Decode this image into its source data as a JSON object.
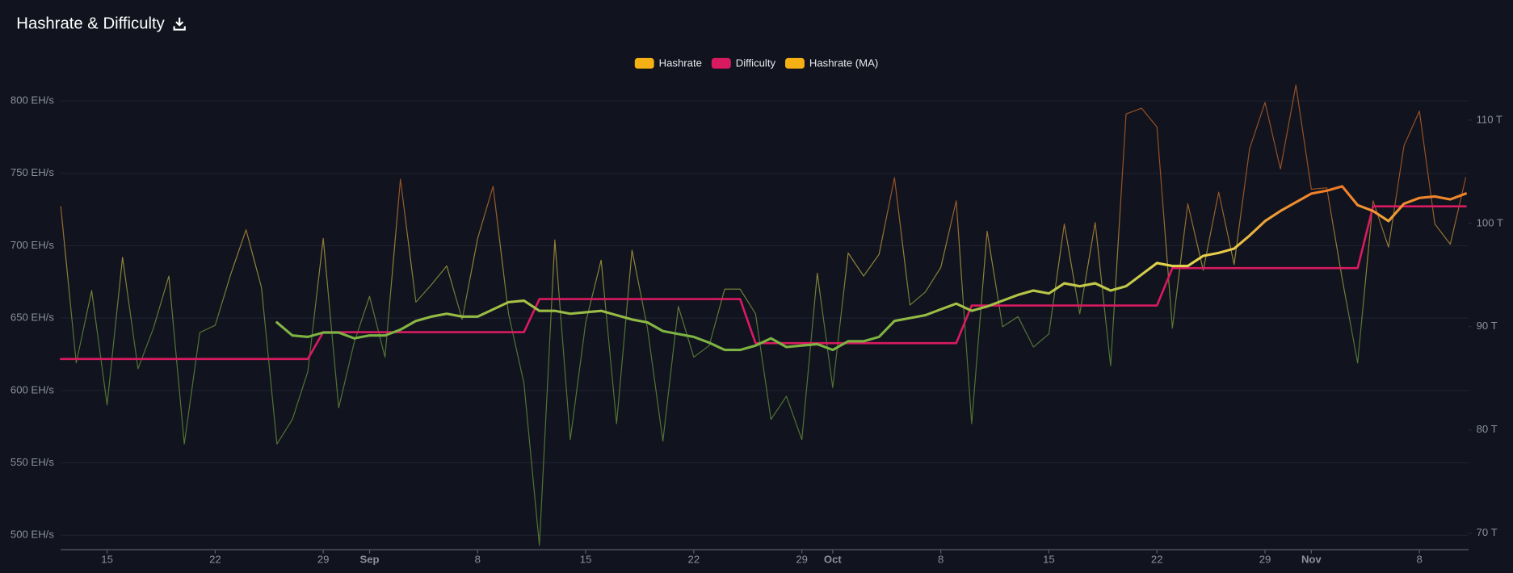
{
  "chart_data": {
    "type": "line",
    "title": "Hashrate & Difficulty",
    "x": [
      "08-12",
      "08-13",
      "08-14",
      "08-15",
      "08-16",
      "08-17",
      "08-18",
      "08-19",
      "08-20",
      "08-21",
      "08-22",
      "08-23",
      "08-24",
      "08-25",
      "08-26",
      "08-27",
      "08-28",
      "08-29",
      "08-30",
      "08-31",
      "09-01",
      "09-02",
      "09-03",
      "09-04",
      "09-05",
      "09-06",
      "09-07",
      "09-08",
      "09-09",
      "09-10",
      "09-11",
      "09-12",
      "09-13",
      "09-14",
      "09-15",
      "09-16",
      "09-17",
      "09-18",
      "09-19",
      "09-20",
      "09-21",
      "09-22",
      "09-23",
      "09-24",
      "09-25",
      "09-26",
      "09-27",
      "09-28",
      "09-29",
      "09-30",
      "10-01",
      "10-02",
      "10-03",
      "10-04",
      "10-05",
      "10-06",
      "10-07",
      "10-08",
      "10-09",
      "10-10",
      "10-11",
      "10-12",
      "10-13",
      "10-14",
      "10-15",
      "10-16",
      "10-17",
      "10-18",
      "10-19",
      "10-20",
      "10-21",
      "10-22",
      "10-23",
      "10-24",
      "10-25",
      "10-26",
      "10-27",
      "10-28",
      "10-29",
      "10-30",
      "10-31",
      "11-01",
      "11-02",
      "11-03",
      "11-04",
      "11-05",
      "11-06",
      "11-07",
      "11-08",
      "11-09",
      "11-10",
      "11-11"
    ],
    "xlim": [
      "08-12",
      "11-11"
    ],
    "xticks": [
      {
        "value": "08-15",
        "label": "15"
      },
      {
        "value": "08-22",
        "label": "22"
      },
      {
        "value": "08-29",
        "label": "29"
      },
      {
        "value": "09-01",
        "label": "Sep"
      },
      {
        "value": "09-08",
        "label": "8"
      },
      {
        "value": "09-15",
        "label": "15"
      },
      {
        "value": "09-22",
        "label": "22"
      },
      {
        "value": "09-29",
        "label": "29"
      },
      {
        "value": "10-01",
        "label": "Oct"
      },
      {
        "value": "10-08",
        "label": "8"
      },
      {
        "value": "10-15",
        "label": "15"
      },
      {
        "value": "10-22",
        "label": "22"
      },
      {
        "value": "10-29",
        "label": "29"
      },
      {
        "value": "11-01",
        "label": "Nov"
      },
      {
        "value": "11-08",
        "label": "8"
      }
    ],
    "ylim": [
      490,
      811
    ],
    "yticks": [
      {
        "value": 500,
        "label": "500 EH/s"
      },
      {
        "value": 550,
        "label": "550 EH/s"
      },
      {
        "value": 600,
        "label": "600 EH/s"
      },
      {
        "value": 650,
        "label": "650 EH/s"
      },
      {
        "value": 700,
        "label": "700 EH/s"
      },
      {
        "value": 750,
        "label": "750 EH/s"
      },
      {
        "value": 800,
        "label": "800 EH/s"
      }
    ],
    "y2lim": [
      68.4,
      113.4
    ],
    "y2ticks": [
      {
        "value": 70,
        "label": "70 T"
      },
      {
        "value": 80,
        "label": "80 T"
      },
      {
        "value": 90,
        "label": "90 T"
      },
      {
        "value": 100,
        "label": "100 T"
      },
      {
        "value": 110,
        "label": "110 T"
      }
    ],
    "grid": true,
    "legend": "top",
    "series": [
      {
        "name": "Hashrate",
        "color": "#f5b014",
        "gradient": [
          "#7cb342",
          "#e8d44d",
          "#f07a28"
        ],
        "values": [
          727,
          619,
          669,
          590,
          692,
          615,
          643,
          679,
          563,
          640,
          645,
          680,
          711,
          671,
          563,
          580,
          613,
          705,
          588,
          633,
          665,
          623,
          746,
          661,
          673,
          686,
          649,
          705,
          741,
          653,
          605,
          493,
          704,
          566,
          647,
          690,
          577,
          697,
          643,
          565,
          658,
          623,
          631,
          670,
          670,
          653,
          580,
          596,
          566,
          681,
          602,
          695,
          679,
          694,
          747,
          659,
          668,
          685,
          731,
          577,
          710,
          644,
          651,
          630,
          639,
          715,
          653,
          716,
          617,
          791,
          795,
          782,
          643,
          729,
          683,
          737,
          687,
          767,
          799,
          753,
          811,
          739,
          740,
          677,
          619,
          731,
          699,
          769,
          793,
          715,
          701,
          747
        ]
      },
      {
        "name": "Difficulty",
        "color": "#d81b60",
        "axis": "y2",
        "values": [
          86.87,
          86.87,
          86.87,
          86.87,
          86.87,
          86.87,
          86.87,
          86.87,
          86.87,
          86.87,
          86.87,
          86.87,
          86.87,
          86.87,
          86.87,
          86.87,
          86.87,
          89.47,
          89.47,
          89.47,
          89.47,
          89.47,
          89.47,
          89.47,
          89.47,
          89.47,
          89.47,
          89.47,
          89.47,
          89.47,
          89.47,
          92.67,
          92.67,
          92.67,
          92.67,
          92.67,
          92.67,
          92.67,
          92.67,
          92.67,
          92.67,
          92.67,
          92.67,
          92.67,
          92.67,
          88.4,
          88.4,
          88.4,
          88.4,
          88.4,
          88.4,
          88.4,
          88.4,
          88.4,
          88.4,
          88.4,
          88.4,
          88.4,
          88.4,
          92.05,
          92.05,
          92.05,
          92.05,
          92.05,
          92.05,
          92.05,
          92.05,
          92.05,
          92.05,
          92.05,
          92.05,
          92.05,
          95.67,
          95.67,
          95.67,
          95.67,
          95.67,
          95.67,
          95.67,
          95.67,
          95.67,
          95.67,
          95.67,
          95.67,
          95.67,
          101.65,
          101.65,
          101.65,
          101.65,
          101.65,
          101.65,
          101.65
        ]
      },
      {
        "name": "Hashrate (MA)",
        "color": "#f5b014",
        "gradient": [
          "#7cb342",
          "#e8d44d",
          "#f07a28"
        ],
        "values": [
          null,
          null,
          null,
          null,
          null,
          null,
          null,
          null,
          null,
          null,
          null,
          null,
          null,
          null,
          647,
          638,
          637,
          640,
          640,
          636,
          638,
          638,
          642,
          648,
          651,
          653,
          651,
          651,
          656,
          661,
          662,
          655,
          655,
          653,
          654,
          655,
          652,
          649,
          647,
          641,
          639,
          637,
          633,
          628,
          628,
          631,
          636,
          630,
          631,
          632,
          628,
          634,
          634,
          637,
          648,
          650,
          652,
          656,
          660,
          655,
          658,
          662,
          666,
          669,
          667,
          674,
          672,
          674,
          669,
          672,
          680,
          688,
          686,
          686,
          693,
          695,
          698,
          707,
          717,
          724,
          730,
          736,
          738,
          741,
          728,
          724,
          717,
          729,
          733,
          734,
          732,
          736
        ]
      }
    ]
  }
}
